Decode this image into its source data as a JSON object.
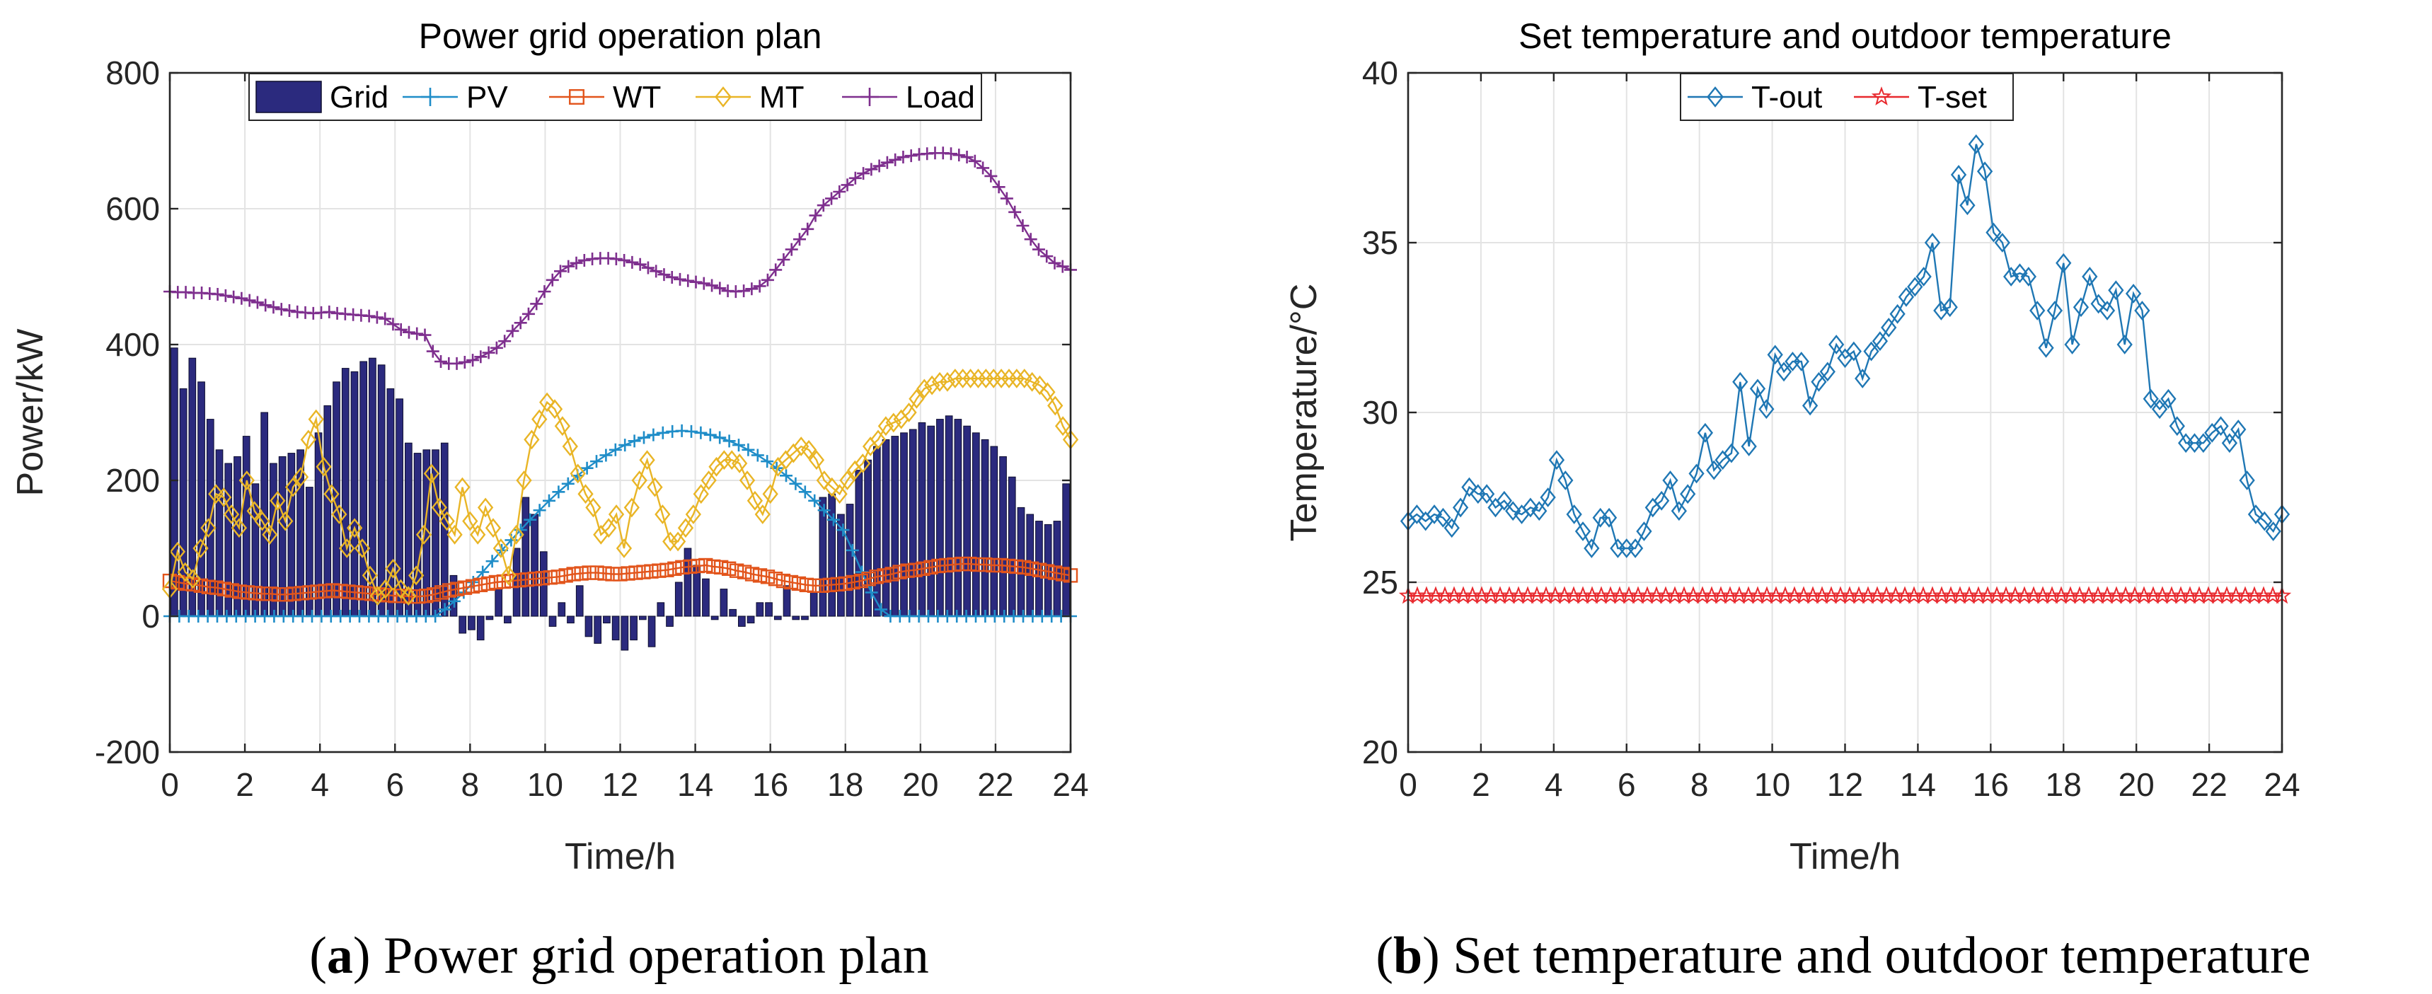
{
  "chart_data": [
    {
      "type": "bar+line",
      "title": "Power grid operation plan",
      "xlabel": "Time/h",
      "ylabel": "Power/kW",
      "xlim": [
        0,
        24
      ],
      "ylim": [
        -200,
        800
      ],
      "xticks": [
        "0",
        "2",
        "4",
        "6",
        "8",
        "10",
        "12",
        "14",
        "16",
        "18",
        "20",
        "22",
        "24"
      ],
      "yticks": [
        "-200",
        "0",
        "200",
        "400",
        "600",
        "800"
      ],
      "grid": true,
      "legend_position": "top",
      "caption_letter": "a",
      "caption_text": "Power grid operation plan",
      "series": [
        {
          "name": "Grid",
          "kind": "bar",
          "color": "#2b2a7e",
          "values": [
            395,
            335,
            380,
            345,
            290,
            245,
            225,
            235,
            265,
            195,
            300,
            225,
            235,
            240,
            245,
            190,
            270,
            310,
            345,
            365,
            360,
            375,
            380,
            370,
            335,
            320,
            255,
            240,
            245,
            245,
            255,
            60,
            -25,
            -20,
            -35,
            -5,
            40,
            -10,
            100,
            175,
            150,
            95,
            -15,
            20,
            -10,
            45,
            -30,
            -40,
            -10,
            -35,
            -50,
            -35,
            -5,
            -45,
            20,
            -15,
            50,
            100,
            75,
            55,
            -5,
            40,
            10,
            -15,
            -10,
            20,
            20,
            -5,
            45,
            -5,
            -5,
            35,
            175,
            180,
            150,
            165,
            215,
            230,
            250,
            260,
            265,
            270,
            275,
            285,
            280,
            290,
            295,
            290,
            280,
            270,
            260,
            250,
            235,
            205,
            160,
            150,
            140,
            135,
            140,
            195
          ]
        },
        {
          "name": "PV",
          "kind": "line",
          "color": "#1f8dc8",
          "marker": "plus",
          "values": [
            0,
            0,
            0,
            0,
            0,
            0,
            0,
            0,
            0,
            0,
            0,
            0,
            0,
            0,
            0,
            0,
            0,
            0,
            0,
            0,
            0,
            0,
            0,
            0,
            0,
            0,
            0,
            0,
            0,
            10,
            22,
            35,
            50,
            65,
            81,
            97,
            112,
            127,
            142,
            156,
            170,
            183,
            195,
            207,
            218,
            228,
            237,
            245,
            252,
            258,
            263,
            267,
            270,
            272,
            273,
            272,
            270,
            267,
            263,
            258,
            252,
            245,
            237,
            228,
            218,
            207,
            195,
            183,
            170,
            156,
            142,
            127,
            97,
            65,
            35,
            10,
            0,
            0,
            0,
            0,
            0,
            0,
            0,
            0,
            0,
            0,
            0,
            0,
            0,
            0,
            0,
            0,
            0,
            0,
            0,
            0
          ]
        },
        {
          "name": "WT",
          "kind": "line",
          "color": "#e2541b",
          "marker": "square",
          "values": [
            52,
            50,
            48,
            47,
            45,
            43,
            42,
            40,
            38,
            36,
            35,
            34,
            33,
            33,
            32,
            32,
            33,
            34,
            35,
            36,
            37,
            38,
            37,
            36,
            35,
            34,
            33,
            32,
            31,
            30,
            30,
            29,
            29,
            30,
            32,
            35,
            38,
            40,
            42,
            44,
            46,
            48,
            50,
            51,
            52,
            53,
            54,
            55,
            56,
            57,
            58,
            60,
            62,
            63,
            64,
            64,
            63,
            62,
            62,
            63,
            64,
            65,
            66,
            67,
            68,
            70,
            72,
            73,
            74,
            75,
            73,
            72,
            70,
            67,
            65,
            62,
            60,
            58,
            55,
            52,
            50,
            48,
            46,
            45,
            45,
            46,
            47,
            48,
            50,
            52,
            55,
            58,
            60,
            62,
            65,
            67,
            68,
            70,
            72,
            74,
            75,
            76,
            77,
            77,
            76,
            76,
            75,
            75,
            74,
            73,
            72,
            70,
            68,
            66,
            64,
            62,
            60
          ]
        },
        {
          "name": "MT",
          "kind": "line",
          "color": "#e9b526",
          "marker": "diamond",
          "values": [
            40,
            95,
            65,
            55,
            100,
            130,
            180,
            175,
            150,
            130,
            200,
            155,
            140,
            120,
            170,
            140,
            190,
            205,
            260,
            290,
            220,
            180,
            150,
            100,
            130,
            100,
            60,
            30,
            40,
            70,
            40,
            30,
            60,
            120,
            210,
            160,
            140,
            120,
            190,
            140,
            120,
            160,
            130,
            100,
            60,
            120,
            200,
            260,
            290,
            315,
            305,
            280,
            250,
            210,
            180,
            160,
            120,
            130,
            150,
            100,
            160,
            200,
            230,
            190,
            150,
            110,
            110,
            130,
            150,
            180,
            200,
            220,
            230,
            230,
            225,
            200,
            170,
            150,
            180,
            220,
            230,
            240,
            250,
            245,
            230,
            200,
            190,
            180,
            200,
            215,
            225,
            250,
            260,
            280,
            285,
            290,
            300,
            320,
            335,
            340,
            345,
            345,
            350,
            350,
            350,
            350,
            350,
            350,
            350,
            350,
            350,
            350,
            345,
            340,
            330,
            310,
            280,
            260
          ]
        },
        {
          "name": "Load",
          "kind": "line",
          "color": "#7e2f8e",
          "marker": "plus",
          "values": [
            478,
            477,
            477,
            476,
            476,
            475,
            474,
            472,
            470,
            468,
            465,
            462,
            458,
            455,
            452,
            450,
            448,
            447,
            446,
            447,
            448,
            446,
            445,
            444,
            443,
            442,
            440,
            438,
            430,
            422,
            418,
            416,
            414,
            390,
            375,
            372,
            372,
            374,
            377,
            382,
            388,
            395,
            405,
            420,
            432,
            445,
            460,
            478,
            495,
            508,
            515,
            520,
            524,
            526,
            527,
            527,
            526,
            524,
            521,
            518,
            513,
            508,
            503,
            499,
            496,
            494,
            492,
            490,
            487,
            483,
            479,
            478,
            479,
            482,
            486,
            495,
            510,
            525,
            540,
            555,
            570,
            590,
            605,
            615,
            625,
            635,
            645,
            652,
            658,
            663,
            668,
            672,
            676,
            678,
            680,
            681,
            682,
            682,
            681,
            679,
            676,
            670,
            660,
            648,
            632,
            615,
            595,
            575,
            555,
            540,
            530,
            520,
            515,
            510
          ]
        }
      ]
    },
    {
      "type": "line",
      "title": "Set temperature and outdoor temperature",
      "xlabel": "Time/h",
      "ylabel": "Temperature/°C",
      "xlim": [
        0,
        24
      ],
      "ylim": [
        20,
        40
      ],
      "xticks": [
        "0",
        "2",
        "4",
        "6",
        "8",
        "10",
        "12",
        "14",
        "16",
        "18",
        "20",
        "22",
        "24"
      ],
      "yticks": [
        "20",
        "25",
        "30",
        "35",
        "40"
      ],
      "grid": true,
      "legend_position": "top",
      "caption_letter": "b",
      "caption_text": "Set temperature and outdoor temperature",
      "series": [
        {
          "name": "T-out",
          "kind": "line",
          "color": "#1f77b4",
          "marker": "diamond",
          "values": [
            26.8,
            27.0,
            26.8,
            27.0,
            26.9,
            26.6,
            27.2,
            27.8,
            27.6,
            27.6,
            27.2,
            27.4,
            27.1,
            27.0,
            27.2,
            27.1,
            27.5,
            28.6,
            28.0,
            27.0,
            26.5,
            26.0,
            26.9,
            26.9,
            26.0,
            26.0,
            26.0,
            26.5,
            27.2,
            27.4,
            28.0,
            27.1,
            27.6,
            28.2,
            29.4,
            28.3,
            28.6,
            28.8,
            30.9,
            29.0,
            30.7,
            30.1,
            31.7,
            31.2,
            31.5,
            31.5,
            30.2,
            30.9,
            31.2,
            32.0,
            31.6,
            31.8,
            31.0,
            31.8,
            32.1,
            32.5,
            32.9,
            33.4,
            33.7,
            34.0,
            35.0,
            33.0,
            33.1,
            37.0,
            36.1,
            37.9,
            37.1,
            35.3,
            35.0,
            34.0,
            34.1,
            34.0,
            33.0,
            31.9,
            33.0,
            34.4,
            32.0,
            33.1,
            34.0,
            33.2,
            33.0,
            33.6,
            32.0,
            33.5,
            33.0,
            30.4,
            30.1,
            30.4,
            29.6,
            29.1,
            29.1,
            29.1,
            29.4,
            29.6,
            29.1,
            29.5,
            28.0,
            27.0,
            26.8,
            26.5,
            27.0
          ]
        },
        {
          "name": "T-set",
          "kind": "line",
          "color": "#e8292e",
          "marker": "star",
          "values": [
            24.6,
            24.6,
            24.6,
            24.6,
            24.6,
            24.6,
            24.6,
            24.6,
            24.6,
            24.6,
            24.6,
            24.6,
            24.6,
            24.6,
            24.6,
            24.6,
            24.6,
            24.6,
            24.6,
            24.6,
            24.6,
            24.6,
            24.6,
            24.6,
            24.6,
            24.6,
            24.6,
            24.6,
            24.6,
            24.6,
            24.6,
            24.6,
            24.6,
            24.6,
            24.6,
            24.6,
            24.6,
            24.6,
            24.6,
            24.6,
            24.6,
            24.6,
            24.6,
            24.6,
            24.6,
            24.6,
            24.6,
            24.6,
            24.6,
            24.6,
            24.6,
            24.6,
            24.6,
            24.6,
            24.6,
            24.6,
            24.6,
            24.6,
            24.6,
            24.6,
            24.6,
            24.6,
            24.6,
            24.6,
            24.6,
            24.6,
            24.6,
            24.6,
            24.6,
            24.6,
            24.6,
            24.6,
            24.6,
            24.6,
            24.6,
            24.6,
            24.6,
            24.6,
            24.6,
            24.6,
            24.6,
            24.6,
            24.6,
            24.6,
            24.6,
            24.6,
            24.6,
            24.6,
            24.6,
            24.6,
            24.6,
            24.6,
            24.6,
            24.6,
            24.6,
            24.6
          ]
        }
      ]
    }
  ]
}
